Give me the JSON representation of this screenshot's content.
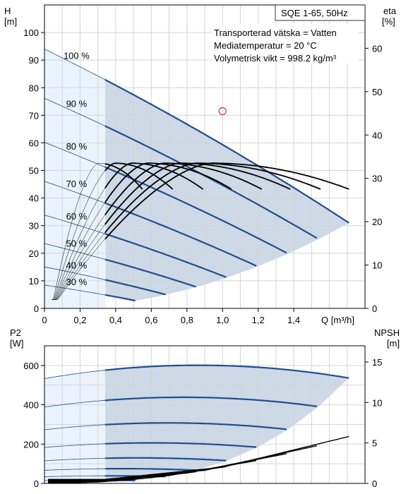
{
  "colors": {
    "curve": "#1f4e8c",
    "region": "#cdd9e6",
    "extrap": "#eaf3fb",
    "grid": "#d4d4d4",
    "eff": "#000000",
    "marker": "#e0303a"
  },
  "top": {
    "ylabel_left": [
      "H",
      "[m]"
    ],
    "ylabel_right": [
      "eta",
      "[%]"
    ],
    "xlabel": "Q [m³/h]",
    "title": "SQE 1-65, 50Hz",
    "info": [
      "Transporterad vätska = Vatten",
      "Mediatemperatur = 20 °C",
      "Volymetrisk vikt = 998.2 kg/m³"
    ],
    "yticks_left": [
      "0",
      "10",
      "20",
      "30",
      "40",
      "50",
      "60",
      "70",
      "80",
      "90",
      "100"
    ],
    "yticks_right": [
      "0",
      "10",
      "20",
      "30",
      "40",
      "50",
      "60"
    ],
    "xticks": [
      "0",
      "0,2",
      "0,4",
      "0,6",
      "0,8",
      "1,0",
      "1,2",
      "1,4"
    ]
  },
  "bottom": {
    "ylabel_left": [
      "P2",
      "[W]"
    ],
    "ylabel_right": [
      "NPSH",
      "[m]"
    ],
    "yticks_left": [
      "0",
      "200",
      "400",
      "600"
    ],
    "yticks_right": [
      "0",
      "5",
      "10",
      "15"
    ]
  },
  "chart_data": [
    {
      "type": "line",
      "name": "head_curves",
      "xlim": [
        0,
        1.8
      ],
      "ylim": [
        0,
        110
      ],
      "y2lim": [
        0,
        70
      ],
      "operating_point": {
        "x": 1.0,
        "y": 71.5
      },
      "series": [
        {
          "label": "100 %",
          "speed": 1.0,
          "x": [
            0,
            0.34,
            1.14,
            1.71
          ],
          "y": [
            94,
            91,
            54,
            31
          ]
        },
        {
          "label": "90 %",
          "speed": 0.9
        },
        {
          "label": "80 %",
          "speed": 0.8
        },
        {
          "label": "70 %",
          "speed": 0.7
        },
        {
          "label": "60 %",
          "speed": 0.6
        },
        {
          "label": "50 %",
          "speed": 0.5
        },
        {
          "label": "40 %",
          "speed": 0.4
        },
        {
          "label": "30 %",
          "speed": 0.3
        }
      ],
      "efficiency_peak_percent": 33.5
    },
    {
      "type": "line",
      "name": "power_npsh_curves",
      "xlim": [
        0,
        1.8
      ],
      "ylim": [
        0,
        700
      ],
      "y2lim": [
        0,
        17
      ],
      "power_100": {
        "x": [
          0,
          0.34,
          0.85,
          1.71
        ],
        "y": [
          533,
          578,
          601,
          536
        ]
      },
      "npsh_100": {
        "x": [
          0.34,
          1.0,
          1.71
        ],
        "y": [
          0.5,
          2.0,
          5.8
        ]
      }
    }
  ]
}
